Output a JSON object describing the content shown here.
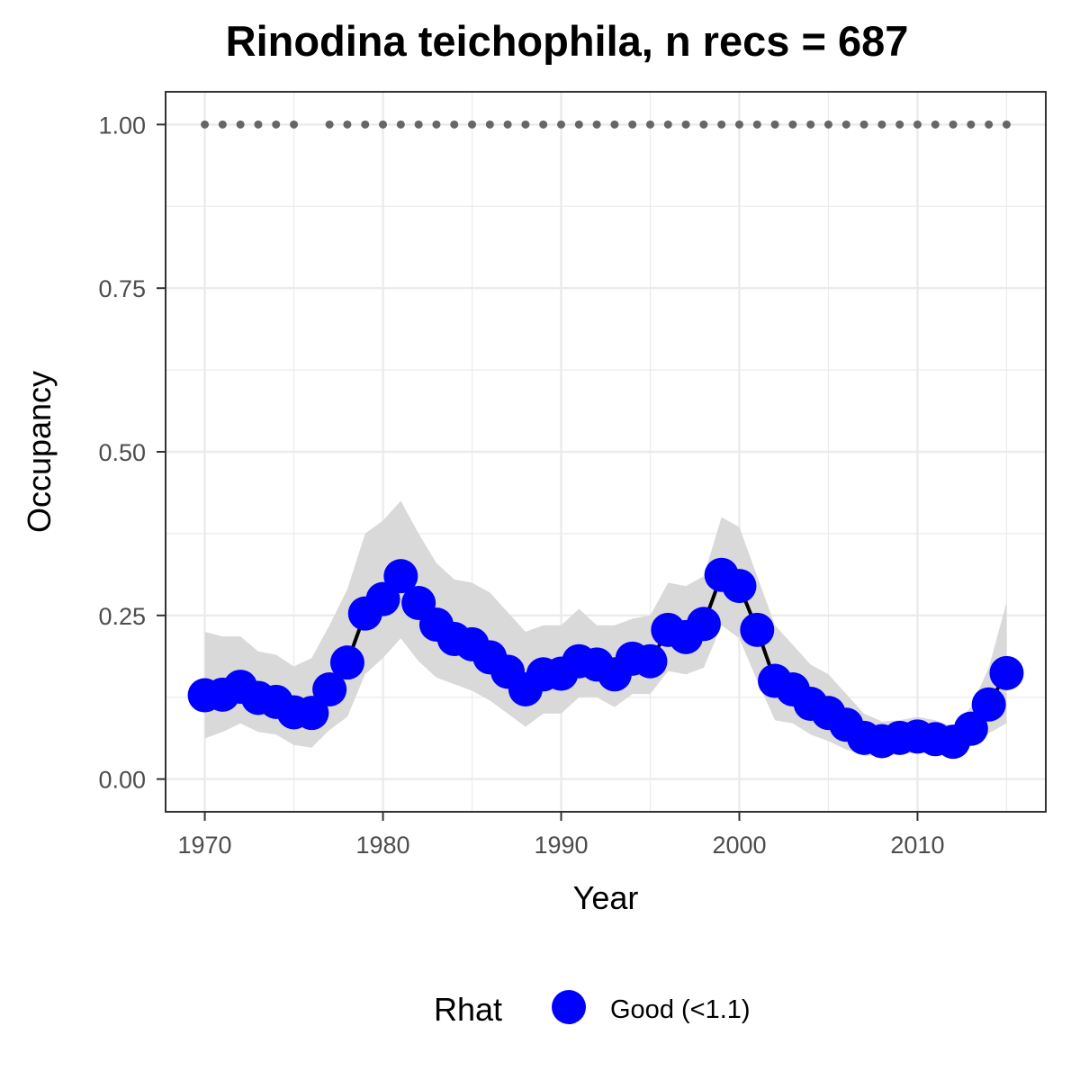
{
  "chart_data": {
    "type": "line",
    "title": "Rinodina teichophila, n recs = 687",
    "xlabel": "Year",
    "ylabel": "Occupancy",
    "xlim": [
      1967.8,
      2017.2
    ],
    "ylim": [
      -0.05,
      1.05
    ],
    "x_ticks": [
      1970,
      1980,
      1990,
      2000,
      2010
    ],
    "x_tick_labels": [
      "1970",
      "1980",
      "1990",
      "2000",
      "2010"
    ],
    "y_ticks": [
      0,
      0.25,
      0.5,
      0.75,
      1.0
    ],
    "y_tick_labels": [
      "0.00",
      "0.25",
      "0.50",
      "0.75",
      "1.00"
    ],
    "grid": true,
    "legend": {
      "title": "Rhat",
      "position": "bottom",
      "entries": [
        {
          "label": "Good (<1.1)",
          "color": "#0000ff"
        }
      ]
    },
    "colors": {
      "points": "#0000ff",
      "line": "#000000",
      "ribbon": "#d9d9d9",
      "recorded_years": "#666666",
      "grid": "#ebebeb",
      "border": "#333333"
    },
    "series": [
      {
        "x": [
          1970,
          1971,
          1972,
          1973,
          1974,
          1975,
          1976,
          1977,
          1978,
          1979,
          1980,
          1981,
          1982,
          1983,
          1984,
          1985,
          1986,
          1987,
          1988,
          1989,
          1990,
          1991,
          1992,
          1993,
          1994,
          1995,
          1996,
          1997,
          1998,
          1999,
          2000,
          2001,
          2002,
          2003,
          2004,
          2005,
          2006,
          2007,
          2008,
          2009,
          2010,
          2011,
          2012,
          2013,
          2014,
          2015
        ],
        "values": [
          0.128,
          0.129,
          0.141,
          0.124,
          0.118,
          0.102,
          0.101,
          0.137,
          0.178,
          0.253,
          0.275,
          0.31,
          0.269,
          0.236,
          0.214,
          0.206,
          0.186,
          0.164,
          0.137,
          0.16,
          0.161,
          0.18,
          0.175,
          0.16,
          0.184,
          0.18,
          0.228,
          0.217,
          0.237,
          0.312,
          0.295,
          0.228,
          0.15,
          0.137,
          0.115,
          0.101,
          0.083,
          0.063,
          0.058,
          0.063,
          0.065,
          0.061,
          0.057,
          0.077,
          0.114,
          0.162
        ],
        "lower": [
          0.062,
          0.072,
          0.085,
          0.072,
          0.068,
          0.052,
          0.048,
          0.075,
          0.095,
          0.16,
          0.185,
          0.215,
          0.18,
          0.155,
          0.145,
          0.135,
          0.12,
          0.1,
          0.08,
          0.1,
          0.1,
          0.125,
          0.125,
          0.11,
          0.13,
          0.13,
          0.165,
          0.16,
          0.17,
          0.235,
          0.215,
          0.15,
          0.09,
          0.085,
          0.068,
          0.058,
          0.045,
          0.036,
          0.035,
          0.038,
          0.04,
          0.038,
          0.035,
          0.05,
          0.07,
          0.085
        ],
        "upper": [
          0.225,
          0.218,
          0.218,
          0.195,
          0.19,
          0.172,
          0.185,
          0.235,
          0.29,
          0.375,
          0.395,
          0.425,
          0.375,
          0.33,
          0.305,
          0.3,
          0.285,
          0.255,
          0.225,
          0.235,
          0.235,
          0.26,
          0.235,
          0.235,
          0.245,
          0.25,
          0.3,
          0.295,
          0.31,
          0.4,
          0.385,
          0.31,
          0.235,
          0.205,
          0.175,
          0.16,
          0.13,
          0.1,
          0.088,
          0.09,
          0.095,
          0.09,
          0.08,
          0.11,
          0.17,
          0.27
        ]
      }
    ],
    "recorded_years": [
      1970,
      1971,
      1972,
      1973,
      1974,
      1975,
      1977,
      1978,
      1979,
      1980,
      1981,
      1982,
      1983,
      1984,
      1985,
      1986,
      1987,
      1988,
      1989,
      1990,
      1991,
      1992,
      1993,
      1994,
      1995,
      1996,
      1997,
      1998,
      1999,
      2000,
      2001,
      2002,
      2003,
      2004,
      2005,
      2006,
      2007,
      2008,
      2009,
      2010,
      2011,
      2012,
      2013,
      2014,
      2015
    ],
    "recorded_value": 1.0
  }
}
